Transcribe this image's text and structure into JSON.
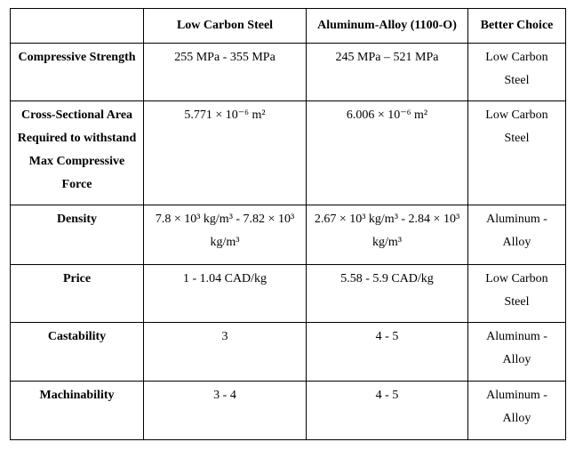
{
  "table": {
    "headers": [
      "",
      "Low Carbon Steel",
      "Aluminum-Alloy (1100-O)",
      "Better Choice"
    ],
    "rows": [
      {
        "property": "Compressive Strength",
        "low_carbon_steel": "255 MPa - 355 MPa",
        "aluminum_alloy": "245 MPa – 521 MPa",
        "better_choice": "Low Carbon Steel"
      },
      {
        "property": "Cross-Sectional Area Required to withstand Max Compressive Force",
        "low_carbon_steel": "5.771 × 10⁻⁶ m²",
        "aluminum_alloy": "6.006 × 10⁻⁶ m²",
        "better_choice": "Low Carbon Steel"
      },
      {
        "property": "Density",
        "low_carbon_steel": "7.8 × 10³ kg/m³ - 7.82 × 10³ kg/m³",
        "aluminum_alloy": "2.67 × 10³ kg/m³ - 2.84 × 10³ kg/m³",
        "better_choice": "Aluminum - Alloy"
      },
      {
        "property": "Price",
        "low_carbon_steel": "1 - 1.04 CAD/kg",
        "aluminum_alloy": "5.58 - 5.9 CAD/kg",
        "better_choice": "Low Carbon Steel"
      },
      {
        "property": "Castability",
        "low_carbon_steel": "3",
        "aluminum_alloy": "4 - 5",
        "better_choice": "Aluminum - Alloy"
      },
      {
        "property": "Machinability",
        "low_carbon_steel": "3 - 4",
        "aluminum_alloy": "4 - 5",
        "better_choice": "Aluminum - Alloy"
      }
    ]
  }
}
